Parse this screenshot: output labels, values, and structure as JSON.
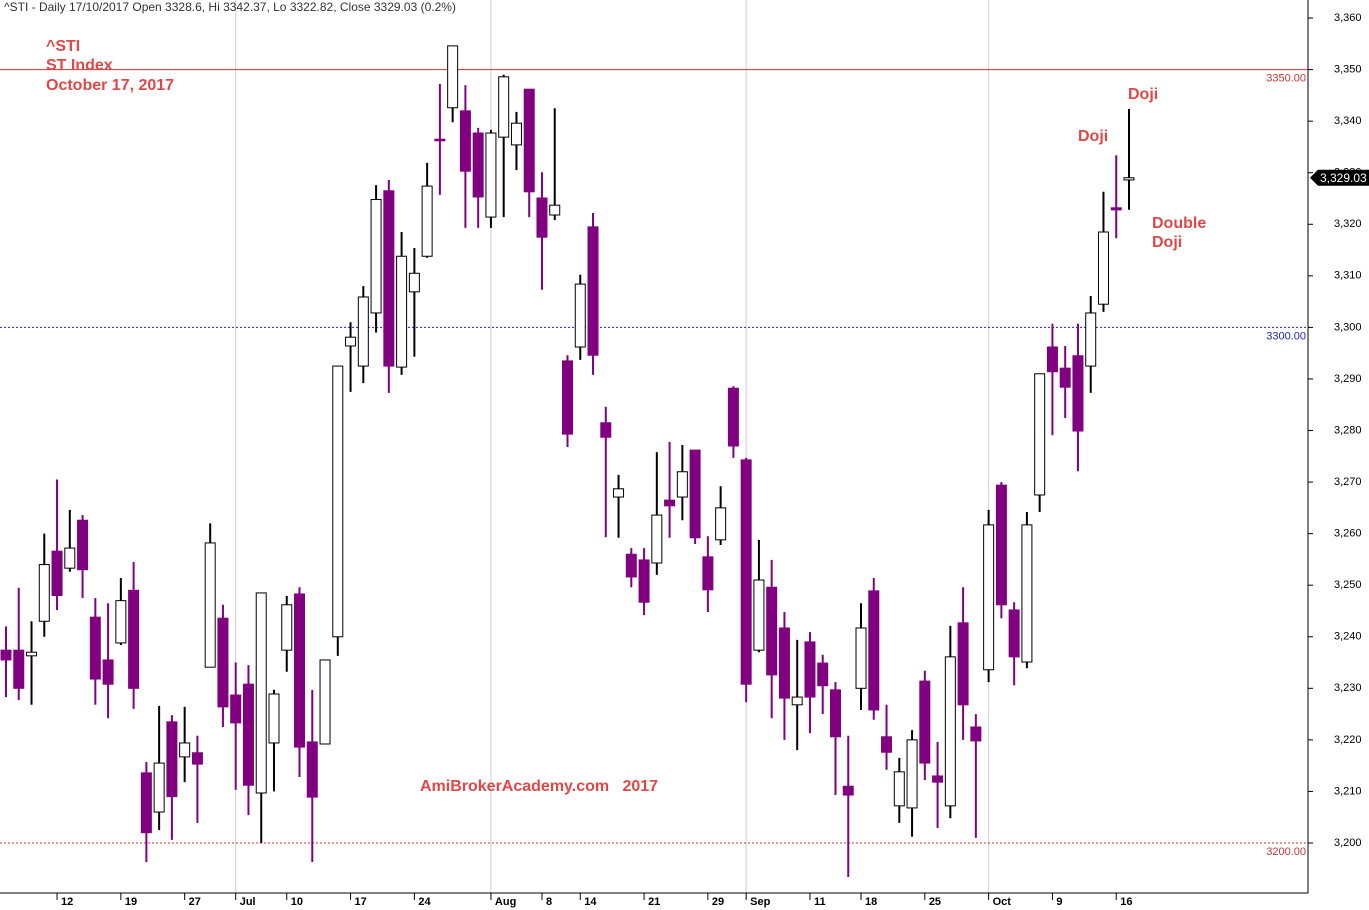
{
  "chart_data": {
    "type": "candlestick",
    "title": "^STI - Daily 17/10/2017 Open 3328.6, Hi 3342.37, Lo 3322.82, Close 3329.03 (0.2%)",
    "annotations": [
      "^STI",
      "ST Index",
      "October 17, 2017",
      "Doji",
      "Doji",
      "Double",
      "Doji",
      "AmiBrokerAcademy.com   2017"
    ],
    "categories": [
      null,
      null,
      null,
      null,
      "12",
      null,
      null,
      null,
      null,
      "19",
      null,
      null,
      null,
      null,
      "27",
      null,
      null,
      null,
      "Jul",
      null,
      null,
      null,
      "10",
      null,
      null,
      null,
      null,
      "17",
      null,
      null,
      null,
      null,
      "24",
      null,
      null,
      null,
      null,
      null,
      "Aug",
      null,
      null,
      null,
      "8",
      null,
      null,
      "14",
      null,
      null,
      null,
      null,
      "21",
      null,
      null,
      null,
      null,
      "29",
      null,
      null,
      "Sep",
      null,
      null,
      null,
      null,
      "11",
      null,
      null,
      null,
      "18",
      null,
      null,
      null,
      null,
      "25",
      null,
      null,
      null,
      null,
      "Oct",
      null,
      null,
      null,
      null,
      "9",
      null,
      null,
      null,
      null,
      "16",
      null
    ],
    "open": [
      3237.4,
      3237.4,
      3236.3,
      3243,
      3256.6,
      3253.3,
      3262.6,
      3243.8,
      3235.5,
      3238.8,
      3249,
      3213.6,
      3206,
      3223.5,
      3216.7,
      3217.5,
      3234.1,
      3243.6,
      3228.7,
      3230.8,
      3209.7,
      3219.4,
      3237.4,
      3248.3,
      3219.6,
      3219.2,
      3240,
      3296.4,
      3292.5,
      3302.8,
      3326.5,
      3292.3,
      3306.9,
      3313.8,
      3336.5,
      3342.6,
      3342,
      3337.7,
      3321.4,
      3336.9,
      3335.4,
      3346.2,
      3325.1,
      3321.8,
      3293.5,
      3296.2,
      3319.5,
      3281.5,
      3267.1,
      3256,
      3254.9,
      3254.3,
      3266.5,
      3267.1,
      3276.2,
      3255.5,
      3258.8,
      3288.2,
      3274.3,
      3237.4,
      3249.6,
      3241.7,
      3226.8,
      3239,
      3234.9,
      3229.7,
      3211,
      3230,
      3248.9,
      3220.6,
      3207.2,
      3206.8,
      3231.4,
      3213,
      3207.2,
      3242.7,
      3222.5,
      3233.6,
      3269.4,
      3245.2,
      3235.1,
      3267.5,
      3296.2,
      3292.1,
      3294.5,
      3292.5,
      3304.5,
      3323.2,
      3328.6
    ],
    "high": [
      3242,
      3249.5,
      3243,
      3260,
      3270.5,
      3264.6,
      3263.6,
      3247.5,
      3246.5,
      3251.4,
      3254.5,
      3215.7,
      3226.6,
      3224.8,
      3226.4,
      3220.8,
      3262,
      3246.2,
      3235,
      3234.5,
      3248.5,
      3229.7,
      3247.9,
      3249.6,
      3229.7,
      3235.5,
      3292.5,
      3301,
      3308,
      3327.6,
      3328.6,
      3318.5,
      3315.4,
      3331.9,
      3347.2,
      3354.6,
      3347,
      3338.7,
      3338.3,
      3349,
      3341.8,
      3346.2,
      3330.1,
      3342.5,
      3294.6,
      3310.2,
      3322.2,
      3284.6,
      3271.4,
      3257.2,
      3257.2,
      3275.8,
      3277.8,
      3277.2,
      3276.2,
      3259.5,
      3269.2,
      3288.6,
      3274.7,
      3258.8,
      3254.9,
      3244.8,
      3239.4,
      3240.9,
      3236.5,
      3231.2,
      3220.8,
      3246.5,
      3251.4,
      3226.8,
      3216.5,
      3221.9,
      3233.4,
      3219.6,
      3242.1,
      3249.6,
      3225,
      3264.6,
      3270,
      3246.7,
      3264.2,
      3291,
      3300.7,
      3296.4,
      3300.7,
      3306.1,
      3326.3,
      3333.4,
      3342.37
    ],
    "low": [
      3228.3,
      3227.7,
      3226.8,
      3240,
      3245.2,
      3252.6,
      3247.5,
      3226.8,
      3224.2,
      3238.4,
      3226,
      3196.3,
      3202.5,
      3200.6,
      3211.8,
      3203.9,
      3234.1,
      3222.5,
      3210.3,
      3205.4,
      3200,
      3210,
      3233.2,
      3212.8,
      3196.3,
      3219.2,
      3236.3,
      3287.5,
      3289.2,
      3299,
      3287.3,
      3290.8,
      3294.3,
      3313.5,
      3325.7,
      3339.8,
      3319.3,
      3319.3,
      3319.3,
      3321.4,
      3330.5,
      3321.4,
      3307.3,
      3320.8,
      3276.8,
      3293.7,
      3290.8,
      3259.3,
      3259.2,
      3249.6,
      3244.2,
      3252,
      3259.2,
      3262.6,
      3258,
      3244.8,
      3257.8,
      3274.7,
      3227.3,
      3237,
      3224.2,
      3220,
      3218,
      3221.3,
      3225,
      3209.3,
      3193.4,
      3225.8,
      3223.9,
      3214.2,
      3203.9,
      3201.2,
      3212.2,
      3202.9,
      3204.8,
      3220,
      3201,
      3231.2,
      3243.6,
      3230.6,
      3233.9,
      3264.2,
      3279.1,
      3282.4,
      3272.1,
      3287.3,
      3303,
      3317.3,
      3322.82
    ],
    "close": [
      3235.5,
      3230,
      3237,
      3254,
      3248,
      3257.2,
      3253,
      3231.8,
      3230.8,
      3247,
      3230,
      3202,
      3215.5,
      3209,
      3219.4,
      3215.3,
      3258.2,
      3226.4,
      3223.3,
      3211.2,
      3248.5,
      3228.9,
      3246.2,
      3218.6,
      3208.9,
      3235.5,
      3292.5,
      3298.1,
      3305.9,
      3324.8,
      3292.5,
      3313.8,
      3310.5,
      3327.4,
      3336.2,
      3354.6,
      3330.3,
      3325.3,
      3337.7,
      3348.6,
      3339.6,
      3326.3,
      3317.5,
      3323.7,
      3279.3,
      3308.4,
      3294.6,
      3278.7,
      3268.7,
      3251.6,
      3246.7,
      3263.6,
      3265.4,
      3272,
      3259.2,
      3249.1,
      3265,
      3277,
      3230.8,
      3251,
      3232.6,
      3228.1,
      3228.3,
      3228.3,
      3230.5,
      3220.6,
      3209.3,
      3241.7,
      3225.8,
      3217.6,
      3213.8,
      3220,
      3215.5,
      3211.8,
      3236.1,
      3226.8,
      3219.8,
      3261.7,
      3246.2,
      3236.1,
      3261.7,
      3291,
      3291.4,
      3288.4,
      3279.9,
      3302.8,
      3318.5,
      3322.8,
      3329.03
    ],
    "up_color": "#ffffff",
    "down_color": "#800080",
    "ylim": [
      3190.3,
      3363.5
    ],
    "yticks": [
      {
        "value": 3200,
        "label": "3,200"
      },
      {
        "value": 3210,
        "label": "3,210"
      },
      {
        "value": 3220,
        "label": "3,220"
      },
      {
        "value": 3230,
        "label": "3,230"
      },
      {
        "value": 3240,
        "label": "3,240"
      },
      {
        "value": 3250,
        "label": "3,250"
      },
      {
        "value": 3260,
        "label": "3,260"
      },
      {
        "value": 3270,
        "label": "3,270"
      },
      {
        "value": 3280,
        "label": "3,280"
      },
      {
        "value": 3290,
        "label": "3,290"
      },
      {
        "value": 3300,
        "label": "3,300"
      },
      {
        "value": 3310,
        "label": "3,310"
      },
      {
        "value": 3320,
        "label": "3,320"
      },
      {
        "value": 3330,
        "label": "3,330"
      },
      {
        "value": 3340,
        "label": "3,340"
      },
      {
        "value": 3350,
        "label": "3,350"
      },
      {
        "value": 3360,
        "label": "3,360"
      }
    ],
    "levels": [
      {
        "value": 3350,
        "label": "3350.00",
        "color": "#cc3333",
        "style": "solid"
      },
      {
        "value": 3300,
        "label": "3300.00",
        "color": "#2222cc",
        "style": "dotted"
      },
      {
        "value": 3200,
        "label": "3200.00",
        "color": "#cc3333",
        "style": "dotted"
      }
    ],
    "price_tag": {
      "value": 3329.03,
      "label": "3,329.03"
    }
  }
}
